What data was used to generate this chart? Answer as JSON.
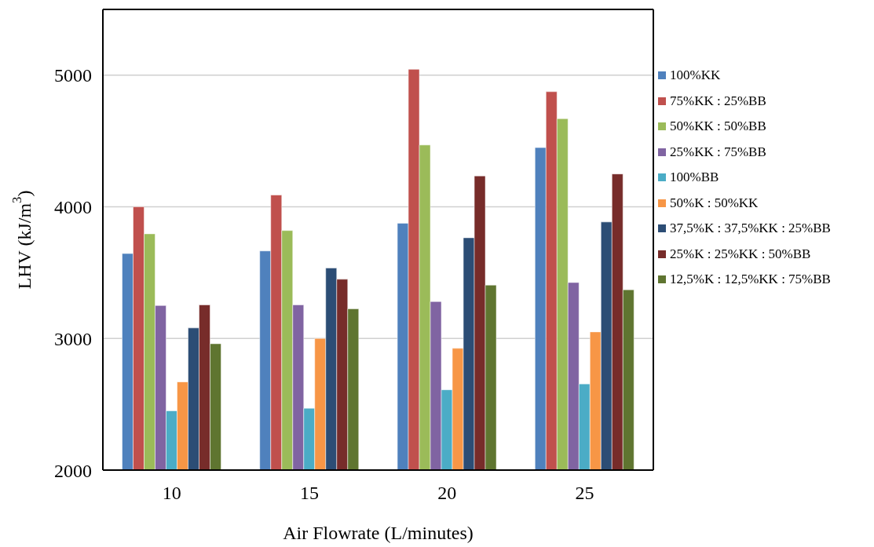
{
  "chart_data": {
    "type": "bar",
    "xlabel": "Air Flowrate (L/minutes)",
    "ylabel": "LHV (kJ/m$^{3}$)",
    "categories": [
      "10",
      "15",
      "20",
      "25"
    ],
    "series": [
      {
        "name": "100%KK",
        "color": "#4f81bd",
        "values": [
          3645,
          3665,
          3875,
          4450
        ]
      },
      {
        "name": "75%KK : 25%BB",
        "color": "#c0504d",
        "values": [
          4000,
          4090,
          5045,
          4875
        ]
      },
      {
        "name": "50%KK : 50%BB",
        "color": "#9bbb59",
        "values": [
          3795,
          3820,
          4470,
          4670
        ]
      },
      {
        "name": "25%KK : 75%BB",
        "color": "#8064a2",
        "values": [
          3250,
          3255,
          3280,
          3425
        ]
      },
      {
        "name": "100%BB",
        "color": "#4bacc6",
        "values": [
          2450,
          2470,
          2610,
          2655
        ]
      },
      {
        "name": "50%K : 50%KK",
        "color": "#f79646",
        "values": [
          2670,
          3000,
          2925,
          3050
        ]
      },
      {
        "name": "37,5%K : 37,5%KK : 25%BB",
        "color": "#2c4d75",
        "values": [
          3080,
          3535,
          3765,
          3885
        ]
      },
      {
        "name": "25%K : 25%KK : 50%BB",
        "color": "#772c2a",
        "values": [
          3255,
          3450,
          4235,
          4250
        ]
      },
      {
        "name": "12,5%K : 12,5%KK : 75%BB",
        "color": "#5f7530",
        "values": [
          2960,
          3225,
          3405,
          3370
        ]
      }
    ],
    "ylim": [
      2000,
      5500
    ],
    "yticks": [
      2000,
      3000,
      4000,
      5000
    ],
    "grid": "y",
    "legend": "right"
  }
}
